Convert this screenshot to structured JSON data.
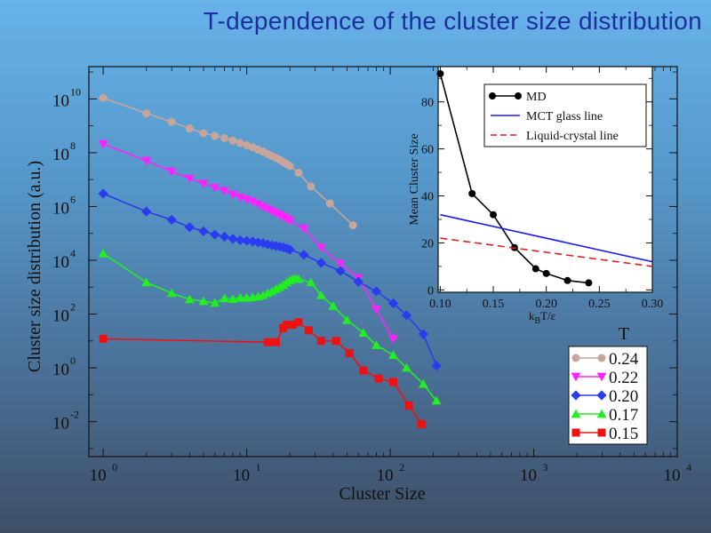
{
  "slide": {
    "title": "T-dependence of the cluster size distribution"
  },
  "chart_data": [
    {
      "type": "line",
      "scale": "log-log",
      "xlabel": "Cluster Size",
      "ylabel": "Cluster size distribution (a.u.)",
      "x_ticks": [
        "10",
        "10",
        "10",
        "10",
        "10"
      ],
      "x_tick_exponents": [
        "0",
        "1",
        "2",
        "3",
        "4"
      ],
      "y_ticks": [
        "10",
        "10",
        "10",
        "10",
        "10",
        "10",
        "10"
      ],
      "y_tick_exponents": [
        "-2",
        "0",
        "2",
        "4",
        "6",
        "8",
        "10"
      ],
      "xlim_exp": [
        -0.1,
        4
      ],
      "ylim_exp": [
        -3.3,
        11.2
      ],
      "legend_title": "T",
      "legend_position": "bottom-right",
      "series": [
        {
          "name": "0.24",
          "color": "#c8a59a",
          "marker": "circle",
          "x": [
            1,
            2,
            3,
            4,
            5,
            6,
            7,
            8,
            9,
            10,
            11,
            12,
            13,
            14,
            15,
            16,
            17,
            18,
            19,
            20,
            23,
            28,
            38,
            55
          ],
          "y": [
            11000000000.0,
            2900000000.0,
            1400000000.0,
            800000000.0,
            530000000.0,
            420000000.0,
            350000000.0,
            280000000.0,
            230000000.0,
            190000000.0,
            160000000.0,
            130000000.0,
            110000000.0,
            90000000.0,
            75000000.0,
            64000000.0,
            54000000.0,
            45000000.0,
            38000000.0,
            32000000.0,
            18000000.0,
            5600000.0,
            1300000.0,
            200000.0
          ]
        },
        {
          "name": "0.22",
          "color": "#ff22ff",
          "marker": "triangle-down",
          "x": [
            1,
            2,
            3,
            4,
            5,
            6,
            7,
            8,
            9,
            10,
            11,
            12,
            13,
            14,
            15,
            16,
            17,
            18,
            19,
            20,
            25,
            33,
            45,
            60,
            80,
            105
          ],
          "y": [
            210000000.0,
            50000000.0,
            20000000.0,
            11000000.0,
            7000000.0,
            5000000.0,
            3800000.0,
            2800000.0,
            2200000.0,
            1800000.0,
            1500000.0,
            1200000.0,
            950000.0,
            800000.0,
            660000.0,
            560000.0,
            480000.0,
            410000.0,
            350000.0,
            300000.0,
            150000.0,
            30000.0,
            7500.0,
            2200.0,
            150.0,
            12
          ]
        },
        {
          "name": "0.20",
          "color": "#2b3cf0",
          "marker": "diamond",
          "x": [
            1,
            2,
            3,
            4,
            5,
            6,
            7,
            8,
            9,
            10,
            11,
            12,
            13,
            14,
            15,
            16,
            17,
            18,
            19,
            20,
            25,
            33,
            45,
            60,
            80,
            105,
            130,
            170,
            210
          ],
          "y": [
            3000000.0,
            650000.0,
            320000.0,
            170000.0,
            120000.0,
            90000.0,
            75000.0,
            63000.0,
            56000.0,
            53000.0,
            50000.0,
            46000.0,
            43000.0,
            39000.0,
            36000.0,
            34000.0,
            32000.0,
            30000.0,
            28000.0,
            25000.0,
            16000.0,
            8000.0,
            4000.0,
            1600.0,
            700.0,
            250.0,
            90,
            18,
            1.2
          ]
        },
        {
          "name": "0.17",
          "color": "#22ee22",
          "marker": "triangle-up",
          "x": [
            1,
            2,
            3,
            4,
            5,
            6,
            7,
            8,
            9,
            10,
            11,
            12,
            13,
            14,
            15,
            16,
            17,
            18,
            19,
            20,
            21,
            22,
            23,
            28,
            33,
            40,
            50,
            65,
            80,
            105,
            130,
            170,
            210
          ],
          "y": [
            18000.0,
            1500.0,
            600.0,
            350.0,
            300.0,
            260.0,
            380.0,
            360.0,
            400.0,
            400.0,
            420.0,
            450.0,
            500.0,
            600.0,
            700.0,
            850.0,
            1000.0,
            1200.0,
            1500.0,
            1800.0,
            2000.0,
            2100.0,
            2000.0,
            1500.0,
            500.0,
            200.0,
            60,
            20,
            7,
            3,
            1.0,
            0.25,
            0.06
          ]
        },
        {
          "name": "0.15",
          "color": "#ee1111",
          "marker": "square",
          "x": [
            1,
            14,
            16,
            18,
            19,
            21,
            23,
            27,
            33,
            42,
            52,
            65,
            83,
            105,
            135,
            165
          ],
          "y": [
            12,
            9,
            9,
            30,
            40,
            40,
            50,
            25,
            10,
            10,
            3.5,
            0.8,
            0.4,
            0.3,
            0.04,
            0.008
          ]
        }
      ]
    },
    {
      "type": "line",
      "xlabel_main": "k",
      "xlabel_sub": "B",
      "xlabel_tail": "T/ε",
      "ylabel": "Mean Cluster Size",
      "xlim": [
        0.098,
        0.3
      ],
      "ylim": [
        -1,
        95
      ],
      "x_ticks": [
        "0.10",
        "0.15",
        "0.20",
        "0.25",
        "0.30"
      ],
      "y_ticks": [
        "0",
        "20",
        "40",
        "60",
        "80"
      ],
      "legend_position": "top-right",
      "series": [
        {
          "name": "MD",
          "color": "#000000",
          "marker": "circle",
          "x": [
            0.1,
            0.13,
            0.15,
            0.17,
            0.19,
            0.2,
            0.22,
            0.24
          ],
          "y": [
            92,
            41,
            32,
            18,
            9,
            7,
            4,
            3
          ]
        },
        {
          "name": "MCT glass line",
          "color": "#1a1aff",
          "dash": "solid",
          "x": [
            0.1,
            0.3
          ],
          "y": [
            32,
            12
          ]
        },
        {
          "name": "Liquid-crystal line",
          "color": "#dd2222",
          "dash": "dashed",
          "x": [
            0.1,
            0.3
          ],
          "y": [
            22,
            10
          ]
        }
      ]
    }
  ]
}
